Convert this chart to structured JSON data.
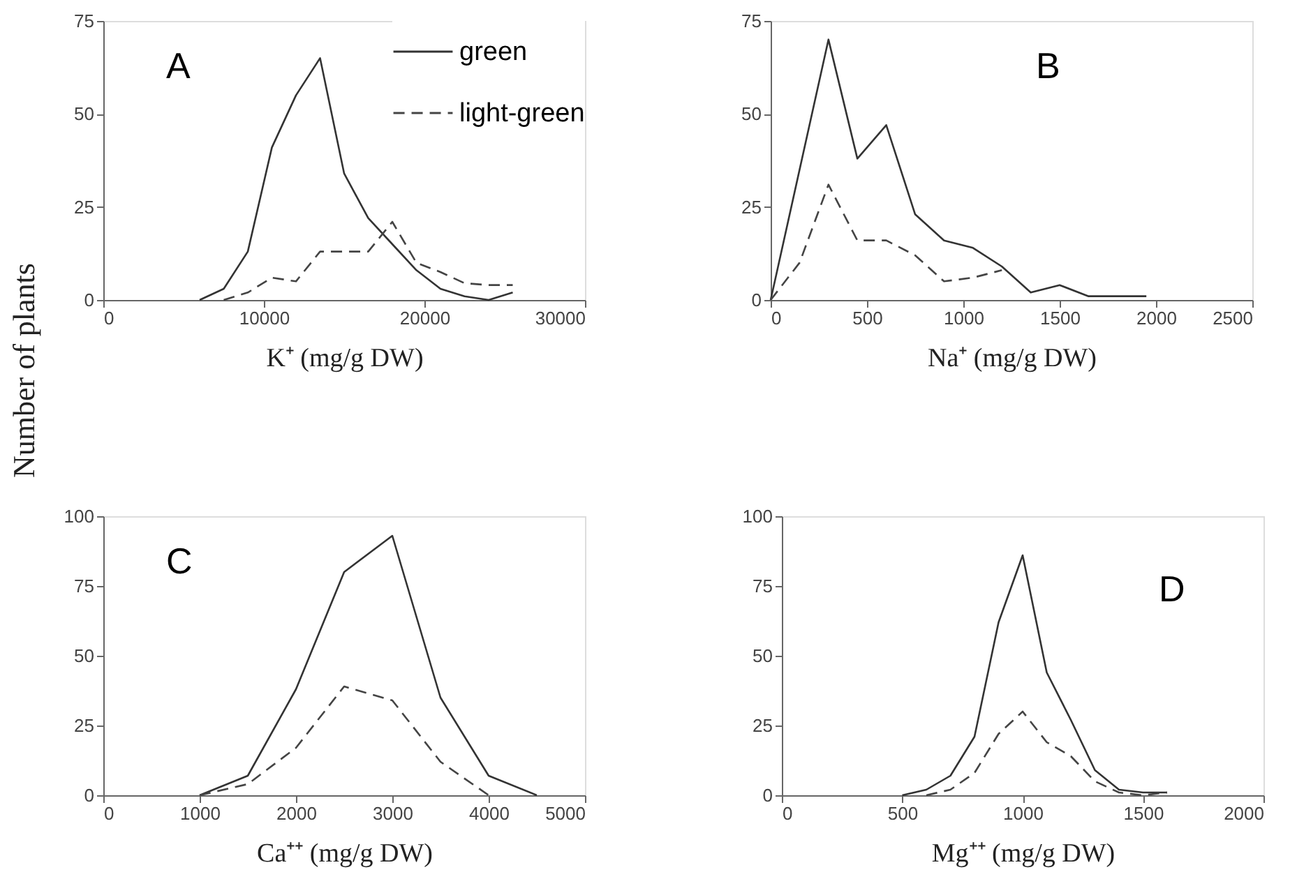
{
  "chart_data": [
    {
      "type": "line",
      "xlabel": "K⁺ (mg/g DW)",
      "ylabel": "Number of plants",
      "annotations": [
        "A"
      ],
      "xlim": [
        0,
        30000
      ],
      "xticks": [
        0,
        10000,
        20000,
        30000
      ],
      "ylim": [
        0,
        75
      ],
      "yticks": [
        0,
        25,
        50,
        75
      ],
      "legend": "top right",
      "grid": false,
      "series": [
        {
          "name": "green",
          "color": "#333333",
          "line_style": "solid",
          "x": [
            6000,
            7500,
            9000,
            10500,
            12000,
            13500,
            15000,
            16500,
            18000,
            19500,
            21000,
            22500,
            24000,
            25500
          ],
          "values": [
            0,
            3,
            13,
            41,
            55,
            65,
            34,
            22,
            15,
            8,
            3,
            1,
            0,
            2
          ]
        },
        {
          "name": "light-green",
          "color": "#444444",
          "line_style": "dashed",
          "x": [
            7500,
            9000,
            10500,
            12000,
            13500,
            16500,
            18000,
            19500,
            21000,
            22500,
            24000,
            25500
          ],
          "values": [
            0,
            2,
            6,
            5,
            13,
            13,
            21,
            10,
            7.5,
            4.5,
            4,
            4
          ]
        }
      ]
    },
    {
      "type": "line",
      "xlabel": "Na⁺ (mg/g DW)",
      "annotations": [
        "B"
      ],
      "xlim": [
        0,
        2500
      ],
      "xticks": [
        0,
        500,
        1000,
        1500,
        2000,
        2500
      ],
      "ylim": [
        0,
        75
      ],
      "yticks": [
        0,
        25,
        50,
        75
      ],
      "grid": false,
      "series": [
        {
          "color": "#333333",
          "line_style": "solid",
          "x": [
            0,
            300,
            450,
            600,
            750,
            900,
            1050,
            1200,
            1350,
            1500,
            1650,
            1800,
            1950
          ],
          "values": [
            0,
            70,
            38,
            47,
            23,
            16,
            14,
            9,
            2,
            4,
            1,
            1,
            1
          ]
        },
        {
          "color": "#444444",
          "line_style": "dashed",
          "x": [
            0,
            150,
            300,
            450,
            600,
            750,
            900,
            1050,
            1200
          ],
          "values": [
            0,
            10,
            31,
            16,
            16,
            12,
            5,
            6,
            8
          ]
        }
      ]
    },
    {
      "type": "line",
      "xlabel": "Ca⁺⁺ (mg/g DW)",
      "annotations": [
        "C"
      ],
      "xlim": [
        0,
        5000
      ],
      "xticks": [
        0,
        1000,
        2000,
        3000,
        4000,
        5000
      ],
      "ylim": [
        0,
        100
      ],
      "yticks": [
        0,
        25,
        50,
        75,
        100
      ],
      "grid": false,
      "series": [
        {
          "color": "#333333",
          "line_style": "solid",
          "x": [
            1000,
            1500,
            2000,
            2500,
            3000,
            3500,
            4000,
            4500
          ],
          "values": [
            0,
            7,
            38,
            80,
            93,
            35,
            7,
            0
          ]
        },
        {
          "color": "#444444",
          "line_style": "dashed",
          "x": [
            1000,
            1500,
            2000,
            2500,
            3000,
            3500,
            4000
          ],
          "values": [
            0,
            4,
            17,
            39,
            34,
            12,
            0
          ]
        }
      ]
    },
    {
      "type": "line",
      "xlabel": "Mg⁺⁺ (mg/g DW)",
      "annotations": [
        "D"
      ],
      "xlim": [
        0,
        2000
      ],
      "xticks": [
        0,
        500,
        1000,
        1500,
        2000
      ],
      "ylim": [
        0,
        100
      ],
      "yticks": [
        0,
        25,
        50,
        75,
        100
      ],
      "grid": false,
      "series": [
        {
          "color": "#333333",
          "line_style": "solid",
          "x": [
            500,
            600,
            700,
            800,
            900,
            1000,
            1100,
            1200,
            1300,
            1400,
            1500,
            1600
          ],
          "values": [
            0,
            2,
            7,
            21,
            62,
            86,
            44,
            27,
            9,
            2,
            1,
            1
          ]
        },
        {
          "color": "#444444",
          "line_style": "dashed",
          "x": [
            600,
            700,
            800,
            900,
            1000,
            1100,
            1200,
            1300,
            1400,
            1500,
            1600
          ],
          "values": [
            0,
            2,
            8,
            22,
            30,
            19,
            14,
            5,
            1,
            0,
            1
          ]
        }
      ]
    }
  ]
}
